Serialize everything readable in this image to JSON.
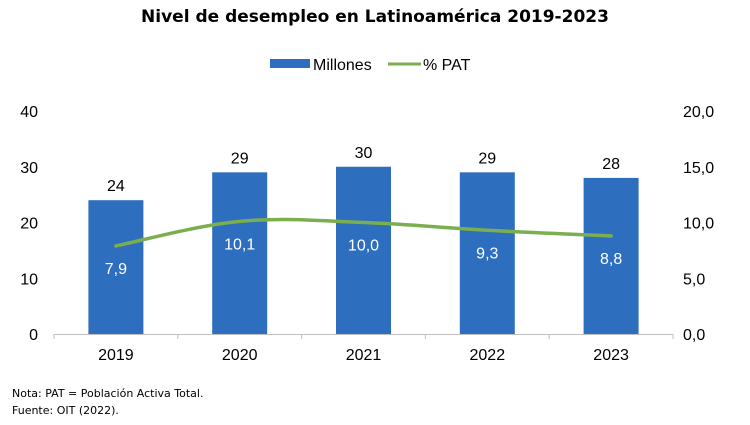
{
  "chart_data": {
    "type": "bar",
    "title": "Nivel de desempleo en Latinoamérica 2019-2023",
    "categories": [
      "2019",
      "2020",
      "2021",
      "2022",
      "2023"
    ],
    "series": [
      {
        "name": "Millones",
        "kind": "bar",
        "axis": "left",
        "color": "#2E6EBE",
        "values": [
          24,
          29,
          30,
          29,
          28
        ],
        "labels": [
          "24",
          "29",
          "30",
          "29",
          "28"
        ]
      },
      {
        "name": "% PAT",
        "kind": "line",
        "axis": "right",
        "color": "#7BAE4F",
        "smooth": true,
        "values": [
          7.9,
          10.1,
          10.0,
          9.3,
          8.8
        ],
        "labels": [
          "7,9",
          "10,1",
          "10,0",
          "9,3",
          "8,8"
        ]
      }
    ],
    "y_left": {
      "ylim": [
        0,
        40
      ],
      "ticks": [
        0,
        10,
        20,
        30,
        40
      ],
      "tick_labels": [
        "0",
        "10",
        "20",
        "30",
        "40"
      ]
    },
    "y_right": {
      "ylim": [
        0,
        20
      ],
      "ticks": [
        0,
        5,
        10,
        15,
        20
      ],
      "tick_labels": [
        "0,0",
        "5,0",
        "10,0",
        "15,0",
        "20,0"
      ]
    },
    "xlabel": "",
    "ylabel": "",
    "grid": false,
    "legend": {
      "placement": "top-center",
      "entries": [
        "Millones",
        "% PAT"
      ]
    }
  },
  "notes": {
    "nota": "Nota: PAT = Población Activa Total.",
    "fuente": "Fuente: OIT (2022)."
  }
}
